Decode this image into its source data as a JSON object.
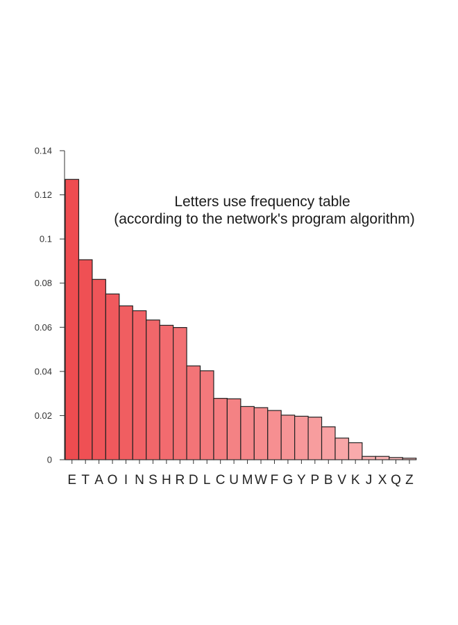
{
  "chart_data": {
    "type": "bar",
    "title": "Letters use frequency table",
    "subtitle": "(according to the network's program algorithm)",
    "xlabel": "",
    "ylabel": "",
    "ylim": [
      0,
      0.14
    ],
    "yticks": [
      "0",
      "0.02",
      "0.04",
      "0.06",
      "0.08",
      "0.1",
      "0.12",
      "0.14"
    ],
    "ytick_values": [
      0,
      0.02,
      0.04,
      0.06,
      0.08,
      0.1,
      0.12,
      0.14
    ],
    "grid": false,
    "categories": [
      "E",
      "T",
      "A",
      "O",
      "I",
      "N",
      "S",
      "H",
      "R",
      "D",
      "L",
      "C",
      "U",
      "M",
      "W",
      "F",
      "G",
      "Y",
      "P",
      "B",
      "V",
      "K",
      "J",
      "X",
      "Q",
      "Z"
    ],
    "values": [
      0.127,
      0.0906,
      0.0817,
      0.0751,
      0.0697,
      0.0675,
      0.0633,
      0.0609,
      0.0599,
      0.0425,
      0.0403,
      0.0278,
      0.0276,
      0.0241,
      0.0236,
      0.0223,
      0.0202,
      0.0197,
      0.0193,
      0.0149,
      0.0098,
      0.0077,
      0.0015,
      0.0015,
      0.001,
      0.0007
    ],
    "colors": {
      "start": "#ee4c50",
      "end": "#fbbcbd",
      "outline": "#222222"
    }
  }
}
